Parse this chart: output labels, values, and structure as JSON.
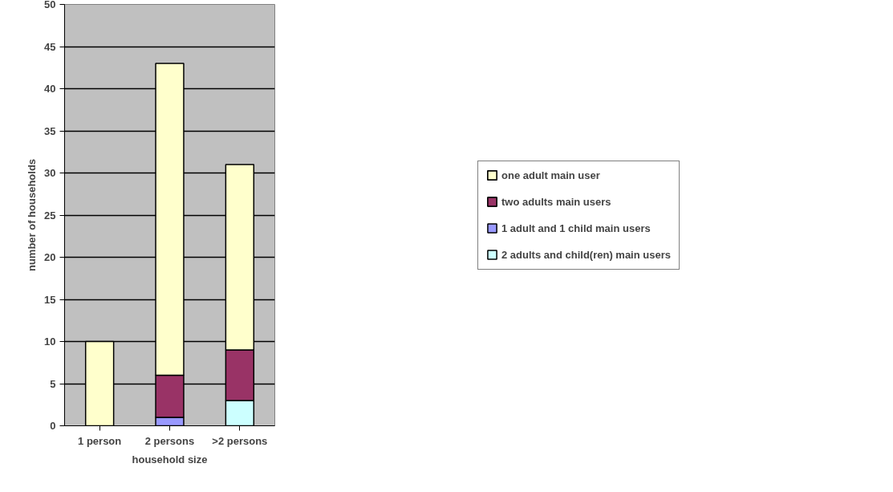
{
  "chart_data": {
    "type": "bar",
    "stacked": true,
    "xlabel": "household size",
    "ylabel": "number of households",
    "categories": [
      "1 person",
      "2 persons",
      ">2 persons"
    ],
    "series": [
      {
        "name": "2 adults and child(ren) main users",
        "color": "#ccffff",
        "values": [
          null,
          null,
          3
        ]
      },
      {
        "name": "1 adult and 1 child main users",
        "color": "#9999ff",
        "values": [
          null,
          1,
          null
        ]
      },
      {
        "name": "two adults main users",
        "color": "#993366",
        "values": [
          null,
          5,
          6
        ]
      },
      {
        "name": "one adult main user",
        "color": "#ffffcc",
        "values": [
          10,
          37,
          22
        ]
      }
    ],
    "ylim": [
      0,
      50
    ],
    "yticks": [
      0,
      5,
      10,
      15,
      20,
      25,
      30,
      35,
      40,
      45,
      50
    ],
    "grid": "y",
    "legend": "right"
  }
}
